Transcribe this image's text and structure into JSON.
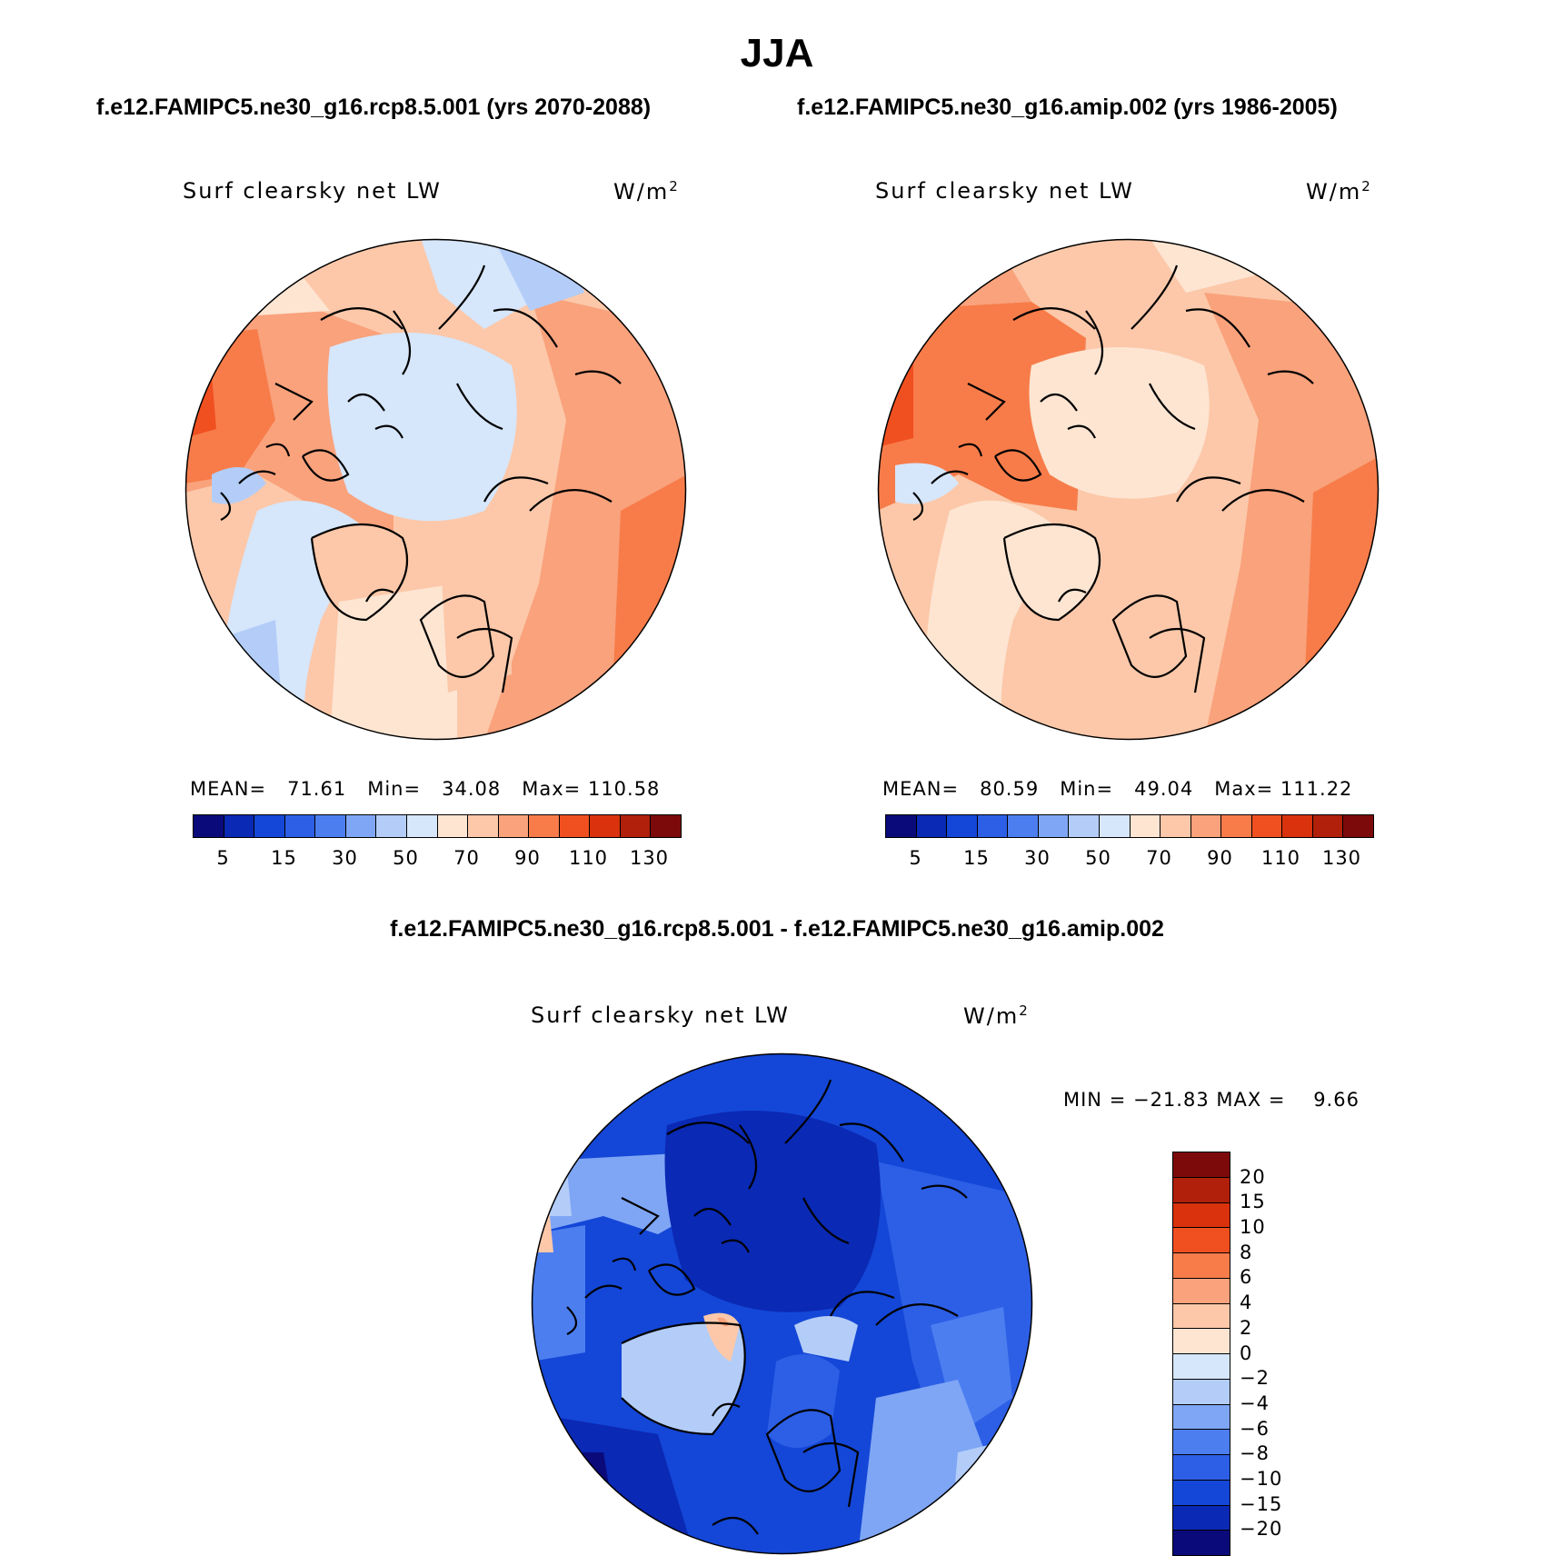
{
  "title": "JJA",
  "panels": [
    {
      "subtitle": "f.e12.FAMIPC5.ne30_g16.rcp8.5.001 (yrs 2070-2088)",
      "variable": "Surf clearsky net LW",
      "units_base": "W/m",
      "units_exp": "2",
      "stats": "MEAN=   71.61   Min=   34.08   Max= 110.58",
      "colorbar_labels": [
        "5",
        "15",
        "30",
        "50",
        "70",
        "90",
        "110",
        "130"
      ]
    },
    {
      "subtitle": "f.e12.FAMIPC5.ne30_g16.amip.002 (yrs 1986-2005)",
      "variable": "Surf clearsky net LW",
      "units_base": "W/m",
      "units_exp": "2",
      "stats": "MEAN=   80.59   Min=   49.04   Max= 111.22",
      "colorbar_labels": [
        "5",
        "15",
        "30",
        "50",
        "70",
        "90",
        "110",
        "130"
      ]
    }
  ],
  "diff": {
    "title": "f.e12.FAMIPC5.ne30_g16.rcp8.5.001 - f.e12.FAMIPC5.ne30_g16.amip.002",
    "variable": "Surf clearsky net LW",
    "units_base": "W/m",
    "units_exp": "2",
    "stats": "MIN = −21.83 MAX =    9.66",
    "colorbar_labels": [
      "20",
      "15",
      "10",
      "8",
      "6",
      "4",
      "2",
      "0",
      "−2",
      "−4",
      "−6",
      "−8",
      "−10",
      "−15",
      "−20"
    ]
  },
  "colors": {
    "abs_scale": [
      "#0a0a7a",
      "#0a29b4",
      "#1447d7",
      "#2d5fe6",
      "#4c7ef0",
      "#7fa6f5",
      "#b3cdf8",
      "#d6e6fb",
      "#fde5d2",
      "#fcc8a9",
      "#f9a27c",
      "#f77c4a",
      "#f05020",
      "#d9320c",
      "#b0200a",
      "#7c0a0a"
    ],
    "diff_scale": [
      "#7c0a0a",
      "#b0200a",
      "#d9320c",
      "#f05020",
      "#f77c4a",
      "#f9a27c",
      "#fcc8a9",
      "#fde5d2",
      "#d6e6fb",
      "#b3cdf8",
      "#7fa6f5",
      "#4c7ef0",
      "#2d5fe6",
      "#1447d7",
      "#0a29b4",
      "#0a0a7a"
    ]
  }
}
